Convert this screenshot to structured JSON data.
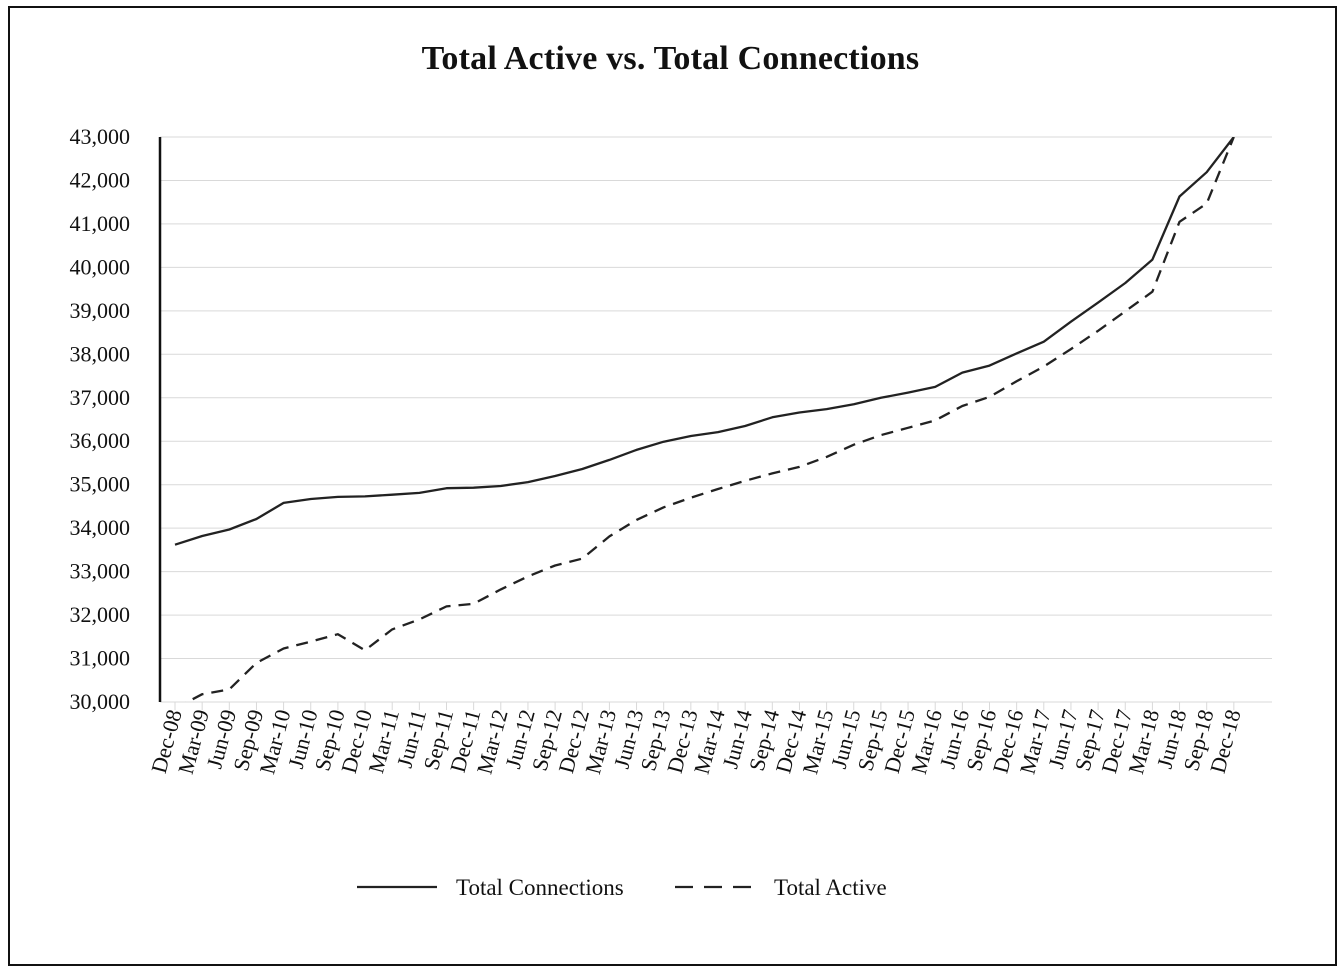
{
  "chart_data": {
    "type": "line",
    "title": "Total Active vs. Total Connections",
    "xlabel": "",
    "ylabel": "",
    "ylim": [
      30000,
      43000
    ],
    "y_ticks": [
      "30,000",
      "31,000",
      "32,000",
      "33,000",
      "34,000",
      "35,000",
      "36,000",
      "37,000",
      "38,000",
      "39,000",
      "40,000",
      "41,000",
      "42,000",
      "43,000"
    ],
    "grid": "horizontal",
    "legend_position": "bottom-center",
    "categories": [
      "Dec-08",
      "Mar-09",
      "Jun-09",
      "Sep-09",
      "Mar-10",
      "Jun-10",
      "Sep-10",
      "Dec-10",
      "Mar-11",
      "Jun-11",
      "Sep-11",
      "Dec-11",
      "Mar-12",
      "Jun-12",
      "Sep-12",
      "Dec-12",
      "Mar-13",
      "Jun-13",
      "Sep-13",
      "Dec-13",
      "Mar-14",
      "Jun-14",
      "Sep-14",
      "Dec-14",
      "Mar-15",
      "Jun-15",
      "Sep-15",
      "Dec-15",
      "Mar-16",
      "Jun-16",
      "Sep-16",
      "Dec-16",
      "Mar-17",
      "Jun-17",
      "Sep-17",
      "Dec-17",
      "Mar-18",
      "Jun-18",
      "Sep-18",
      "Dec-18"
    ],
    "series": [
      {
        "name": "Total Connections",
        "style": "solid",
        "color": "#222222",
        "values": [
          33620,
          33820,
          33970,
          34210,
          34580,
          34670,
          34720,
          34730,
          34770,
          34810,
          34920,
          34930,
          34970,
          35060,
          35200,
          35360,
          35570,
          35800,
          35990,
          36120,
          36210,
          36350,
          36550,
          36660,
          36740,
          36850,
          37000,
          37120,
          37250,
          37580,
          37740,
          38020,
          38290,
          38750,
          39190,
          39640,
          40180,
          41630,
          42190,
          43000
        ]
      },
      {
        "name": "Total Active",
        "style": "dashed",
        "color": "#222222",
        "values": [
          29850,
          30180,
          30290,
          30900,
          31230,
          31390,
          31560,
          31190,
          31670,
          31900,
          32200,
          32260,
          32590,
          32890,
          33140,
          33300,
          33810,
          34190,
          34480,
          34700,
          34900,
          35090,
          35260,
          35410,
          35640,
          35920,
          36140,
          36310,
          36480,
          36810,
          37020,
          37380,
          37720,
          38120,
          38540,
          38990,
          39440,
          41050,
          41470,
          43000
        ]
      }
    ]
  }
}
